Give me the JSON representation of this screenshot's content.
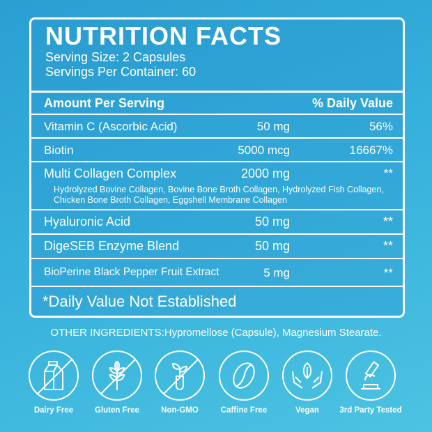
{
  "title": "NUTRITION FACTS",
  "serving_size": "Serving Size: 2 Capsules",
  "servings_per_container": "Servings Per Container: 60",
  "header": {
    "amount": "Amount Per Serving",
    "dv": "% Daily Value"
  },
  "rows": [
    {
      "name": "Vitamin C (Ascorbic Acid)",
      "amount": "50 mg",
      "dv": "56%"
    },
    {
      "name": "Biotin",
      "amount": "5000 mcg",
      "dv": "16667%"
    },
    {
      "name": "Multi Collagen Complex",
      "amount": "2000 mg",
      "dv": "**",
      "detail": "Hydrolyzed Bovine Collagen, Bovine Bone Broth Collagen, Hydrolyzed Fish Collagen, Chicken Bone Broth Collagen, Eggshell Membrane Collagen"
    },
    {
      "name": "Hyaluronic Acid",
      "amount": "50 mg",
      "dv": "**"
    },
    {
      "name": "DigeSEB Enzyme Blend",
      "amount": "50 mg",
      "dv": "**"
    },
    {
      "name": "BioPerine Black Pepper Fruit Extract",
      "amount": "5 mg",
      "dv": "**"
    }
  ],
  "footnote": "*Daily Value Not Established",
  "other_ingredients": "OTHER INGREDIENTS:Hypromellose (Capsule), Magnesium Stearate.",
  "badges": [
    {
      "label": "Dairy Free",
      "icon": "milk-carton-icon"
    },
    {
      "label": "Gluten Free",
      "icon": "wheat-icon"
    },
    {
      "label": "Non-GMO",
      "icon": "test-tube-plant-icon"
    },
    {
      "label": "Caffine Free",
      "icon": "coffee-bean-icon"
    },
    {
      "label": "Vegan",
      "icon": "hands-leaf-icon"
    },
    {
      "label": "3rd Party Tested",
      "icon": "microscope-icon"
    }
  ],
  "colors": {
    "background": "#36b0dc",
    "text": "#ffffff"
  }
}
